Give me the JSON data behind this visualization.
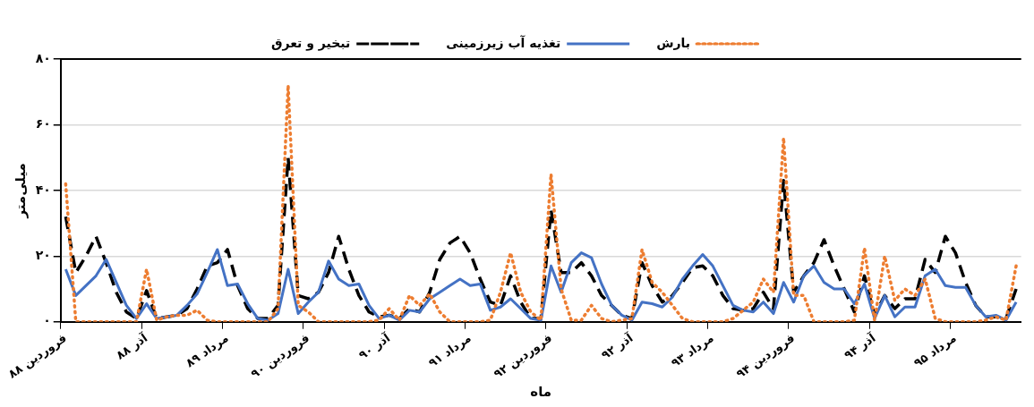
{
  "chart_data": {
    "type": "line",
    "xlabel": "ماه",
    "ylabel": "میلی‌متر",
    "categories": [
      "فروردین ۸۸",
      null,
      null,
      null,
      null,
      null,
      null,
      null,
      "آذر ۸۸",
      null,
      null,
      null,
      null,
      null,
      null,
      null,
      "مرداد ۸۹",
      null,
      null,
      null,
      null,
      null,
      null,
      null,
      "فروردین ۹۰",
      null,
      null,
      null,
      null,
      null,
      null,
      null,
      "آذر ۹۰",
      null,
      null,
      null,
      null,
      null,
      null,
      null,
      "مرداد ۹۱",
      null,
      null,
      null,
      null,
      null,
      null,
      null,
      "فروردین ۹۲",
      null,
      null,
      null,
      null,
      null,
      null,
      null,
      "آذر ۹۲",
      null,
      null,
      null,
      null,
      null,
      null,
      null,
      "مرداد ۹۳",
      null,
      null,
      null,
      null,
      null,
      null,
      null,
      "فروردین ۹۴",
      null,
      null,
      null,
      null,
      null,
      null,
      null,
      "آذر ۹۴",
      null,
      null,
      null,
      null,
      null,
      null,
      null,
      "مرداد ۹۵",
      null,
      null,
      null,
      null,
      null,
      null
    ],
    "series": [
      {
        "name": "بارش",
        "color": "#ed7d31",
        "line_style": "dotted",
        "values": [
          42,
          0,
          0,
          0,
          0,
          0,
          0,
          0,
          16,
          0.5,
          1.5,
          2,
          2,
          3.5,
          0.5,
          0,
          0,
          0,
          0,
          0,
          0,
          4,
          72,
          5,
          3,
          0,
          0,
          0,
          0,
          0,
          0,
          0.5,
          4,
          0.5,
          8,
          5,
          8.5,
          3,
          0,
          0,
          0,
          0,
          0.5,
          9,
          21,
          9,
          3,
          0.5,
          45,
          10,
          0.5,
          0.5,
          5,
          1,
          0,
          0.5,
          1,
          22,
          12,
          9,
          5,
          1,
          0,
          0,
          0,
          0,
          1,
          3.5,
          6,
          13,
          9,
          56,
          8,
          8,
          0,
          0,
          0,
          0,
          0.5,
          22.5,
          0.5,
          20,
          6.5,
          10,
          8,
          13,
          1,
          0,
          0,
          0,
          0,
          0.5,
          1.5,
          0.5,
          17
        ]
      },
      {
        "name": "تغذیه آب زیرزمینی",
        "color": "#4472c4",
        "line_style": "solid",
        "values": [
          16,
          8,
          11,
          14,
          19,
          12,
          5,
          1,
          5.5,
          1,
          1.5,
          2,
          5,
          8.5,
          15,
          22,
          11,
          11.5,
          5.5,
          1,
          0.5,
          2.5,
          16,
          2.5,
          6,
          9,
          18.5,
          13,
          11,
          11.5,
          5,
          1,
          2,
          0.5,
          3.5,
          3,
          7,
          9,
          11,
          13,
          11,
          11.5,
          3.5,
          4.5,
          7,
          4,
          1,
          0.5,
          17,
          9,
          18,
          21,
          19.5,
          11.5,
          5,
          2,
          0.5,
          6,
          5.5,
          4.5,
          7.5,
          13,
          17,
          20.5,
          17,
          11,
          5,
          3.5,
          3,
          6,
          2.5,
          12,
          6,
          14,
          17,
          12,
          10,
          10,
          5.5,
          11.5,
          1,
          8,
          1.5,
          4.5,
          4.5,
          14,
          16,
          11,
          10.5,
          10.5,
          5,
          1.5,
          2,
          0.5,
          6
        ]
      },
      {
        "name": "تبخیر و تعرق",
        "color": "#000000",
        "line_style": "dashed",
        "values": [
          32,
          15,
          20,
          26,
          18,
          9,
          3,
          1,
          9.5,
          1,
          1.5,
          2,
          4,
          10,
          17,
          18,
          22,
          11,
          4,
          1,
          1,
          5,
          50,
          8,
          7,
          9,
          15,
          26,
          16,
          8,
          3,
          1.5,
          2,
          1,
          4,
          3,
          9,
          19,
          24,
          26,
          21,
          13,
          6,
          5,
          14,
          6,
          1,
          1,
          34,
          15,
          15,
          18,
          14,
          8,
          5,
          2,
          1,
          18,
          11,
          6,
          8,
          12,
          16.5,
          17,
          14,
          8,
          4,
          3.5,
          4,
          9,
          4,
          43,
          9,
          14,
          18,
          25,
          17,
          10,
          3,
          14,
          2,
          8,
          4,
          7,
          7,
          19,
          15,
          26,
          21,
          12,
          5,
          1.5,
          1.5,
          1,
          10
        ]
      }
    ],
    "ylim": [
      0,
      80
    ],
    "yticks": [
      {
        "value": 0,
        "label": "۰"
      },
      {
        "value": 20,
        "label": "۲۰"
      },
      {
        "value": 40,
        "label": "۴۰"
      },
      {
        "value": 60,
        "label": "۶۰"
      },
      {
        "value": 80,
        "label": "۸۰"
      }
    ],
    "grid": "y",
    "legend": "top",
    "marker": "none"
  }
}
